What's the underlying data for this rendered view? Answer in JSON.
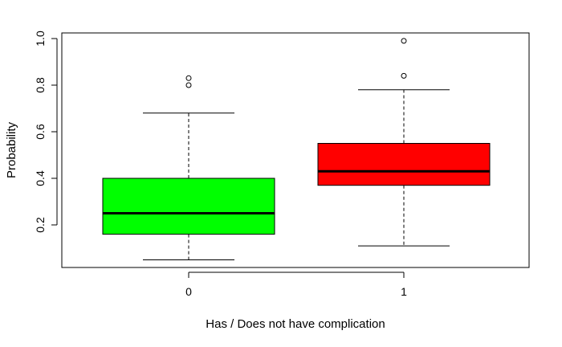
{
  "chart_data": {
    "type": "box",
    "xlabel": "Has / Does not have complication",
    "ylabel": "Probability",
    "ylim": [
      0.0,
      1.0
    ],
    "y_ticks": [
      0.2,
      0.4,
      0.6,
      0.8,
      1.0
    ],
    "y_tick_labels": [
      "0.2",
      "0.4",
      "0.6",
      "0.8",
      "1.0"
    ],
    "categories": [
      "0",
      "1"
    ],
    "boxes": [
      {
        "category": "0",
        "color": "#00ff00",
        "whisker_low": 0.05,
        "q1": 0.16,
        "median": 0.25,
        "q3": 0.4,
        "whisker_high": 0.68,
        "outliers": [
          0.8,
          0.83
        ]
      },
      {
        "category": "1",
        "color": "#ff0000",
        "whisker_low": 0.11,
        "q1": 0.37,
        "median": 0.43,
        "q3": 0.55,
        "whisker_high": 0.78,
        "outliers": [
          0.84,
          0.99
        ]
      }
    ]
  }
}
